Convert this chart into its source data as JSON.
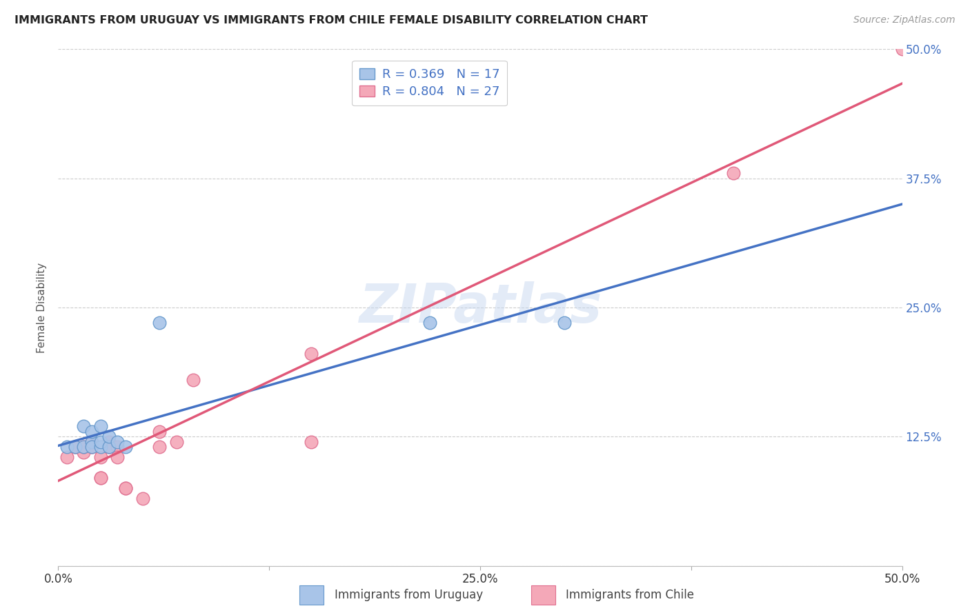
{
  "title": "IMMIGRANTS FROM URUGUAY VS IMMIGRANTS FROM CHILE FEMALE DISABILITY CORRELATION CHART",
  "source": "Source: ZipAtlas.com",
  "ylabel_label": "Female Disability",
  "x_ticks": [
    0.0,
    0.125,
    0.25,
    0.375,
    0.5
  ],
  "x_tick_labels": [
    "0.0%",
    "",
    "25.0%",
    "",
    "50.0%"
  ],
  "y_ticks": [
    0.0,
    0.125,
    0.25,
    0.375,
    0.5
  ],
  "y_tick_labels_right": [
    "",
    "12.5%",
    "25.0%",
    "37.5%",
    "50.0%"
  ],
  "xlim": [
    0.0,
    0.5
  ],
  "ylim": [
    0.0,
    0.5
  ],
  "watermark": "ZIPatlas",
  "legend_label1": "Immigrants from Uruguay",
  "legend_label2": "Immigrants from Chile",
  "color_uruguay_fill": "#a8c4e8",
  "color_uruguay_edge": "#6699cc",
  "color_chile_fill": "#f4a8b8",
  "color_chile_edge": "#e07090",
  "color_blue_line": "#4472c4",
  "color_pink_line": "#e05878",
  "color_legend_text": "#4472c4",
  "color_grid": "#cccccc",
  "background_color": "#ffffff",
  "uruguay_x": [
    0.005,
    0.01,
    0.015,
    0.015,
    0.02,
    0.02,
    0.02,
    0.025,
    0.025,
    0.025,
    0.03,
    0.03,
    0.035,
    0.04,
    0.06,
    0.22,
    0.3
  ],
  "uruguay_y": [
    0.115,
    0.115,
    0.115,
    0.135,
    0.12,
    0.115,
    0.13,
    0.115,
    0.12,
    0.135,
    0.115,
    0.125,
    0.12,
    0.115,
    0.235,
    0.235,
    0.235
  ],
  "chile_x": [
    0.005,
    0.01,
    0.01,
    0.015,
    0.015,
    0.02,
    0.02,
    0.02,
    0.025,
    0.025,
    0.025,
    0.03,
    0.03,
    0.03,
    0.035,
    0.035,
    0.04,
    0.04,
    0.05,
    0.06,
    0.06,
    0.07,
    0.08,
    0.15,
    0.15,
    0.4,
    0.5
  ],
  "chile_y": [
    0.105,
    0.115,
    0.115,
    0.11,
    0.115,
    0.12,
    0.115,
    0.115,
    0.105,
    0.085,
    0.085,
    0.12,
    0.115,
    0.115,
    0.115,
    0.105,
    0.075,
    0.075,
    0.065,
    0.13,
    0.115,
    0.12,
    0.18,
    0.205,
    0.12,
    0.38,
    0.5
  ]
}
